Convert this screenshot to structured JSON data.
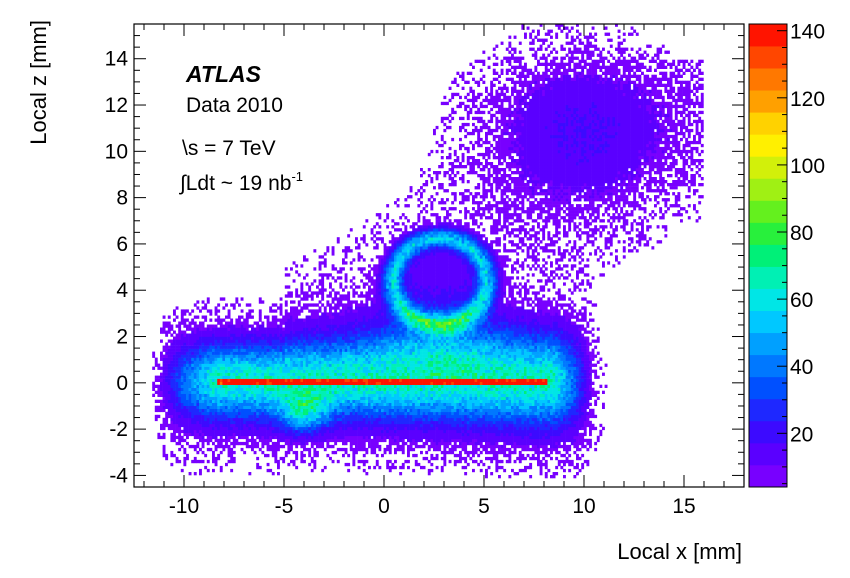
{
  "chart_data": {
    "type": "heatmap",
    "title": "",
    "xlabel": "Local x [mm]",
    "ylabel": "Local z [mm]",
    "xlim": [
      -12.5,
      18
    ],
    "ylim": [
      -4.5,
      15.5
    ],
    "x_ticks": [
      -10,
      -5,
      0,
      5,
      10,
      15
    ],
    "x_tick_labels": [
      "-10",
      "-5",
      "0",
      "5",
      "10",
      "15"
    ],
    "y_ticks": [
      -4,
      -2,
      0,
      2,
      4,
      6,
      8,
      10,
      12,
      14
    ],
    "y_tick_labels": [
      "-4",
      "-2",
      "0",
      "2",
      "4",
      "6",
      "8",
      "10",
      "12",
      "14"
    ],
    "colorbar": {
      "range": [
        4,
        142
      ],
      "ticks": [
        20,
        40,
        60,
        80,
        100,
        120,
        140
      ],
      "tick_labels": [
        "20",
        "40",
        "60",
        "80",
        "100",
        "120",
        "140"
      ],
      "colors": [
        "#7800ff",
        "#5a00ff",
        "#3c0aff",
        "#1e28ff",
        "#0050ff",
        "#0078ff",
        "#00a0ff",
        "#00c8ff",
        "#00e6e6",
        "#00f0b4",
        "#00f078",
        "#28f03c",
        "#64f01e",
        "#a0f014",
        "#d2f00a",
        "#fff000",
        "#ffd200",
        "#ffa000",
        "#ff7800",
        "#ff4600",
        "#ff1400"
      ]
    },
    "annotations": {
      "experiment": "ATLAS",
      "dataset": "Data 2010",
      "energy": "\\s = 7 TeV",
      "lumi_prefix": "∫Ldt ~ 19 nb",
      "lumi_sup": "-1"
    },
    "density_regions": [
      {
        "name": "central band",
        "x_range": [
          -11,
          10
        ],
        "z_range": [
          -2,
          1.8
        ],
        "peak_value": 60
      },
      {
        "name": "bright strip",
        "x_range": [
          -8.3,
          8.2
        ],
        "z_range": [
          -0.1,
          0.1
        ],
        "peak_value": 140
      },
      {
        "name": "ring",
        "center": [
          2.8,
          4.4
        ],
        "radius_x": 2.5,
        "radius_z": 1.9,
        "peak_value": 50
      },
      {
        "name": "upper blob",
        "center": [
          9.5,
          11.2
        ],
        "radius_x": 4.5,
        "radius_z": 3,
        "peak_value": 15
      },
      {
        "name": "lower blob",
        "center": [
          -4,
          -1.3
        ],
        "radius_x": 1,
        "radius_z": 0.9,
        "peak_value": 40
      }
    ]
  }
}
